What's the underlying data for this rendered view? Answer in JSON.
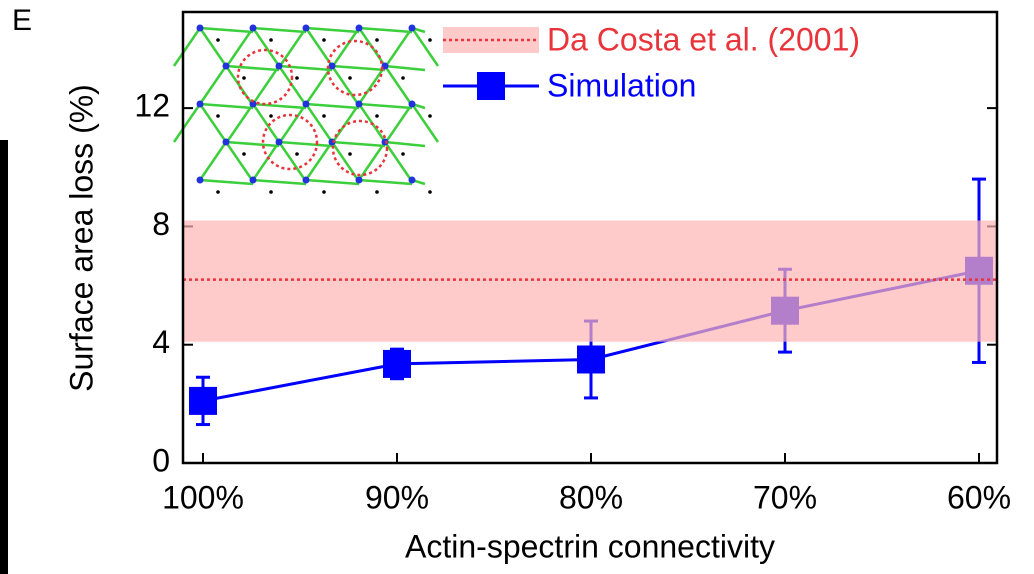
{
  "chart_data": {
    "type": "line",
    "panel_label": "E",
    "x_label": "Actin-spectrin connectivity",
    "y_label": "Surface area loss (%)",
    "categories": [
      "100%",
      "90%",
      "80%",
      "70%",
      "60%"
    ],
    "series": [
      {
        "name": "Simulation",
        "color": "#0000ff",
        "values": [
          2.1,
          3.35,
          3.5,
          5.15,
          6.5
        ],
        "errors": [
          0.8,
          0.5,
          1.3,
          1.4,
          3.1
        ]
      }
    ],
    "reference": {
      "name": "Da Costa et al. (2001)",
      "color": "#e8343a",
      "band_color": "#ffb3b3",
      "value": 6.2,
      "low": 4.1,
      "high": 8.2
    },
    "ylim": [
      0,
      15.25
    ],
    "yticks": [
      0,
      4,
      8,
      12
    ]
  }
}
